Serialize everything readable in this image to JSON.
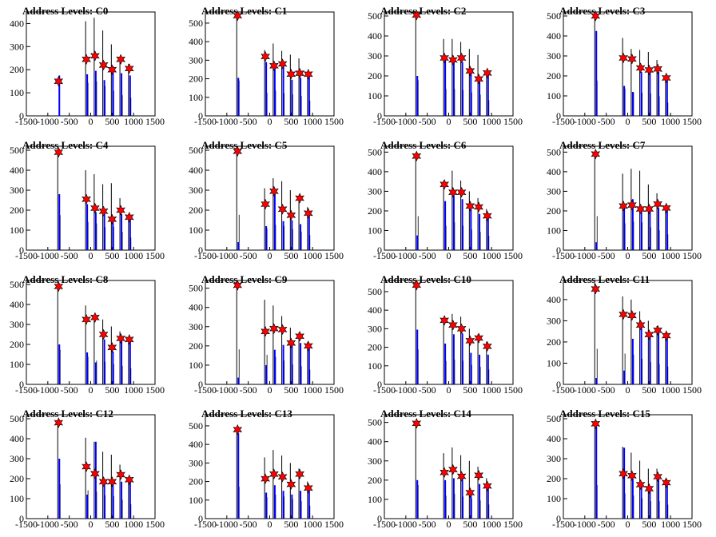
{
  "x_ticks": [
    -1500,
    -1000,
    -500,
    0,
    500,
    1000,
    1500
  ],
  "xlim": [
    -1500,
    1500
  ],
  "colors": {
    "stem": "#000000",
    "bar": "#0000ff",
    "marker": "#ff0000"
  },
  "chart_data": [
    {
      "type": "bar",
      "title": "Address Levels: C0",
      "ylim": [
        0,
        450
      ],
      "y_ticks": [
        0,
        100,
        200,
        300,
        400
      ],
      "stems_x": [
        -750,
        -100,
        100,
        300,
        500,
        700,
        900
      ],
      "stems_y": [
        0,
        410,
        425,
        370,
        310,
        255,
        225
      ],
      "bars_y": [
        175,
        180,
        195,
        155,
        215,
        185,
        175
      ],
      "markers_x": [
        -750,
        -100,
        100,
        300,
        500,
        700,
        900
      ],
      "markers_y": [
        150,
        245,
        260,
        220,
        200,
        245,
        205
      ]
    },
    {
      "type": "bar",
      "title": "Address Levels: C1",
      "ylim": [
        0,
        560
      ],
      "y_ticks": [
        0,
        100,
        200,
        300,
        400,
        500
      ],
      "stems_x": [
        -750,
        -100,
        100,
        300,
        500,
        700,
        900
      ],
      "stems_y": [
        545,
        355,
        390,
        350,
        330,
        310,
        235
      ],
      "bars_y": [
        205,
        290,
        265,
        275,
        195,
        205,
        215
      ],
      "markers_x": [
        -750,
        -100,
        100,
        300,
        500,
        700,
        900
      ],
      "markers_y": [
        540,
        320,
        270,
        280,
        225,
        230,
        225
      ]
    },
    {
      "type": "bar",
      "title": "Address Levels: C2",
      "ylim": [
        0,
        520
      ],
      "y_ticks": [
        0,
        100,
        200,
        300,
        400,
        500
      ],
      "stems_x": [
        -750,
        -100,
        100,
        300,
        500,
        700,
        900
      ],
      "stems_y": [
        510,
        385,
        385,
        370,
        335,
        305,
        225
      ],
      "bars_y": [
        200,
        290,
        285,
        270,
        240,
        175,
        225
      ],
      "markers_x": [
        -750,
        -100,
        100,
        300,
        500,
        700,
        900
      ],
      "markers_y": [
        505,
        290,
        280,
        290,
        225,
        185,
        215
      ]
    },
    {
      "type": "bar",
      "title": "Address Levels: C3",
      "ylim": [
        0,
        520
      ],
      "y_ticks": [
        0,
        100,
        200,
        300,
        400,
        500
      ],
      "stems_x": [
        -750,
        -100,
        100,
        300,
        500,
        700,
        900
      ],
      "stems_y": [
        505,
        390,
        335,
        330,
        320,
        280,
        190
      ],
      "bars_y": [
        425,
        150,
        120,
        220,
        225,
        220,
        180
      ],
      "markers_x": [
        -750,
        -100,
        100,
        300,
        500,
        700,
        900
      ],
      "markers_y": [
        500,
        290,
        285,
        240,
        230,
        235,
        190
      ]
    },
    {
      "type": "bar",
      "title": "Address Levels: C4",
      "ylim": [
        0,
        520
      ],
      "y_ticks": [
        0,
        100,
        200,
        300,
        400,
        500
      ],
      "stems_x": [
        -750,
        -100,
        100,
        300,
        500,
        700,
        900
      ],
      "stems_y": [
        500,
        400,
        380,
        330,
        335,
        260,
        180
      ],
      "bars_y": [
        280,
        230,
        190,
        190,
        150,
        180,
        170
      ],
      "markers_x": [
        -750,
        -100,
        100,
        300,
        500,
        700,
        900
      ],
      "markers_y": [
        490,
        255,
        210,
        195,
        155,
        200,
        165
      ]
    },
    {
      "type": "bar",
      "title": "Address Levels: C5",
      "ylim": [
        0,
        520
      ],
      "y_ticks": [
        0,
        100,
        200,
        300,
        400,
        500
      ],
      "stems_x": [
        -750,
        -100,
        100,
        300,
        500,
        700,
        900
      ],
      "stems_y": [
        505,
        310,
        360,
        345,
        300,
        265,
        215
      ],
      "bars_y": [
        40,
        120,
        295,
        145,
        150,
        130,
        180
      ],
      "markers_x": [
        -750,
        -100,
        100,
        300,
        500,
        700,
        900
      ],
      "markers_y": [
        495,
        230,
        295,
        205,
        175,
        260,
        185
      ]
    },
    {
      "type": "bar",
      "title": "Address Levels: C6",
      "ylim": [
        0,
        530
      ],
      "y_ticks": [
        0,
        100,
        200,
        300,
        400,
        500
      ],
      "stems_x": [
        -750,
        -100,
        100,
        300,
        500,
        700,
        900
      ],
      "stems_y": [
        495,
        355,
        405,
        355,
        300,
        265,
        210
      ],
      "bars_y": [
        75,
        250,
        280,
        260,
        210,
        185,
        165
      ],
      "markers_x": [
        -750,
        -100,
        100,
        300,
        500,
        700,
        900
      ],
      "markers_y": [
        480,
        335,
        295,
        295,
        225,
        220,
        175
      ]
    },
    {
      "type": "bar",
      "title": "Address Levels: C7",
      "ylim": [
        0,
        530
      ],
      "y_ticks": [
        0,
        100,
        200,
        300,
        400,
        500
      ],
      "stems_x": [
        -750,
        -100,
        100,
        300,
        500,
        700,
        900
      ],
      "stems_y": [
        495,
        390,
        415,
        405,
        335,
        290,
        230
      ],
      "bars_y": [
        40,
        225,
        260,
        210,
        205,
        215,
        210
      ],
      "markers_x": [
        -750,
        -100,
        100,
        300,
        500,
        700,
        900
      ],
      "markers_y": [
        490,
        225,
        230,
        210,
        210,
        235,
        215
      ]
    },
    {
      "type": "bar",
      "title": "Address Levels: C8",
      "ylim": [
        0,
        520
      ],
      "y_ticks": [
        0,
        100,
        200,
        300,
        400,
        500
      ],
      "stems_x": [
        -750,
        -100,
        100,
        300,
        500,
        700,
        900
      ],
      "stems_y": [
        495,
        395,
        340,
        325,
        290,
        265,
        230
      ],
      "bars_y": [
        200,
        160,
        110,
        225,
        165,
        230,
        215
      ],
      "markers_x": [
        -750,
        -100,
        100,
        300,
        500,
        700,
        900
      ],
      "markers_y": [
        490,
        325,
        335,
        250,
        185,
        230,
        225
      ]
    },
    {
      "type": "bar",
      "title": "Address Levels: C9",
      "ylim": [
        0,
        540
      ],
      "y_ticks": [
        0,
        100,
        200,
        300,
        400,
        500
      ],
      "stems_x": [
        -750,
        -100,
        100,
        300,
        500,
        700,
        900
      ],
      "stems_y": [
        520,
        440,
        410,
        355,
        295,
        270,
        220
      ],
      "bars_y": [
        35,
        100,
        180,
        205,
        205,
        215,
        200
      ],
      "markers_x": [
        -750,
        -100,
        100,
        300,
        500,
        700,
        900
      ],
      "markers_y": [
        515,
        275,
        290,
        285,
        215,
        250,
        200
      ]
    },
    {
      "type": "bar",
      "title": "Address Levels: C10",
      "ylim": [
        0,
        560
      ],
      "y_ticks": [
        0,
        100,
        200,
        300,
        400,
        500
      ],
      "stems_x": [
        -750,
        -100,
        100,
        300,
        500,
        700,
        900
      ],
      "stems_y": [
        540,
        360,
        380,
        365,
        300,
        270,
        230
      ],
      "bars_y": [
        295,
        220,
        270,
        275,
        170,
        160,
        160
      ],
      "markers_x": [
        -750,
        -100,
        100,
        300,
        500,
        700,
        900
      ],
      "markers_y": [
        535,
        345,
        320,
        300,
        235,
        250,
        205
      ]
    },
    {
      "type": "bar",
      "title": "Address Levels: C11",
      "ylim": [
        0,
        490
      ],
      "y_ticks": [
        0,
        100,
        200,
        300,
        400
      ],
      "stems_x": [
        -750,
        -100,
        100,
        300,
        500,
        700,
        900
      ],
      "stems_y": [
        480,
        415,
        400,
        345,
        300,
        275,
        240
      ],
      "bars_y": [
        30,
        65,
        215,
        285,
        230,
        245,
        220
      ],
      "markers_x": [
        -750,
        -100,
        100,
        300,
        500,
        700,
        900
      ],
      "markers_y": [
        450,
        330,
        325,
        280,
        235,
        255,
        230
      ]
    },
    {
      "type": "bar",
      "title": "Address Levels: C12",
      "ylim": [
        0,
        520
      ],
      "y_ticks": [
        0,
        100,
        200,
        300,
        400,
        500
      ],
      "stems_x": [
        -750,
        -100,
        100,
        300,
        500,
        700,
        900
      ],
      "stems_y": [
        490,
        405,
        385,
        335,
        320,
        270,
        205
      ],
      "bars_y": [
        300,
        120,
        385,
        180,
        180,
        185,
        190
      ],
      "markers_x": [
        -750,
        -100,
        100,
        300,
        500,
        700,
        900
      ],
      "markers_y": [
        480,
        260,
        225,
        185,
        185,
        220,
        195
      ]
    },
    {
      "type": "bar",
      "title": "Address Levels: C13",
      "ylim": [
        0,
        560
      ],
      "y_ticks": [
        0,
        100,
        200,
        300,
        400,
        500
      ],
      "stems_x": [
        -750,
        -100,
        100,
        300,
        500,
        700,
        900
      ],
      "stems_y": [
        490,
        330,
        370,
        340,
        300,
        270,
        200
      ],
      "bars_y": [
        460,
        140,
        180,
        150,
        130,
        150,
        160
      ],
      "markers_x": [
        -750,
        -100,
        100,
        300,
        500,
        700,
        900
      ],
      "markers_y": [
        480,
        215,
        240,
        225,
        185,
        240,
        165
      ]
    },
    {
      "type": "bar",
      "title": "Address Levels: C14",
      "ylim": [
        0,
        540
      ],
      "y_ticks": [
        0,
        100,
        200,
        300,
        400,
        500
      ],
      "stems_x": [
        -750,
        -100,
        100,
        300,
        500,
        700,
        900
      ],
      "stems_y": [
        500,
        340,
        370,
        330,
        300,
        270,
        210
      ],
      "bars_y": [
        200,
        200,
        210,
        210,
        130,
        180,
        160
      ],
      "markers_x": [
        -750,
        -100,
        100,
        300,
        500,
        700,
        900
      ],
      "markers_y": [
        495,
        240,
        255,
        220,
        135,
        225,
        170
      ]
    },
    {
      "type": "bar",
      "title": "Address Levels: C15",
      "ylim": [
        0,
        520
      ],
      "y_ticks": [
        0,
        100,
        200,
        300,
        400,
        500
      ],
      "stems_x": [
        -750,
        -100,
        100,
        300,
        500,
        700,
        900
      ],
      "stems_y": [
        480,
        360,
        330,
        290,
        250,
        250,
        200
      ],
      "bars_y": [
        460,
        355,
        200,
        170,
        140,
        205,
        175
      ],
      "markers_x": [
        -750,
        -100,
        100,
        300,
        500,
        700,
        900
      ],
      "markers_y": [
        475,
        225,
        215,
        170,
        150,
        210,
        180
      ]
    }
  ]
}
